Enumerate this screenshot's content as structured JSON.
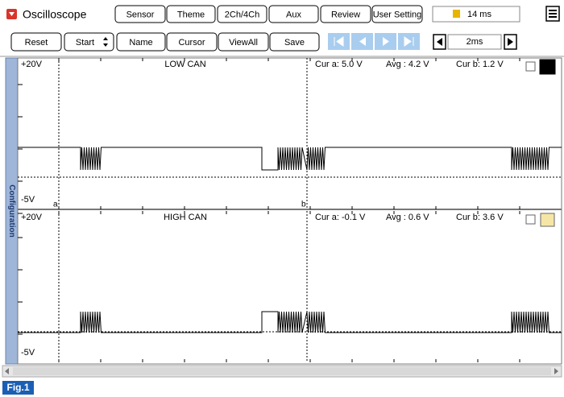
{
  "toolbar": {
    "title": "Oscilloscope",
    "buttons": [
      "Sensor",
      "Theme",
      "2Ch/4Ch",
      "Aux",
      "Review",
      "User Setting"
    ],
    "time": "14 ms",
    "actions": [
      "Reset",
      "Start",
      "Name",
      "Cursor",
      "ViewAll",
      "Save"
    ],
    "time_div": "2ms"
  },
  "side_tab": "Configuration",
  "channels": [
    {
      "max": "+20V",
      "name": "LOW CAN",
      "cur_a": "Cur a: 5.0 V",
      "avg": "Avg : 4.2 V",
      "cur_b": "Cur b: 1.2 V",
      "min": "-5V",
      "cursor_a": "a",
      "cursor_b": "b"
    },
    {
      "max": "+20V",
      "name": "HIGH CAN",
      "cur_a": "Cur a: -0.1 V",
      "avg": "Avg : 0.6 V",
      "cur_b": "Cur b: 3.6 V",
      "min": "-5V"
    }
  ],
  "figure_label": "Fig.1"
}
